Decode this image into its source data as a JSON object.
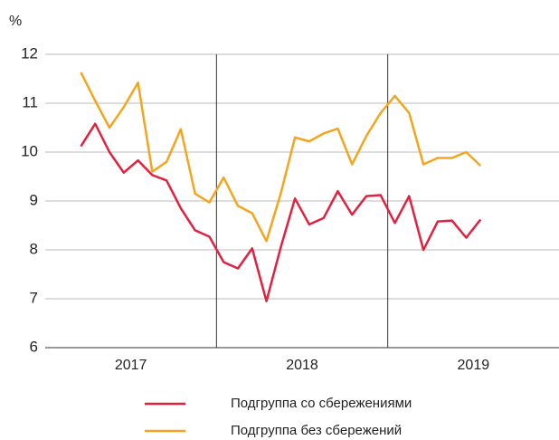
{
  "chart_data": {
    "type": "line",
    "y_label": "%",
    "x": [
      3,
      4,
      5,
      6,
      7,
      8,
      9,
      10,
      11,
      12,
      13,
      14,
      15,
      16,
      17,
      18,
      19,
      20,
      21,
      22,
      23,
      24,
      25,
      26,
      27,
      28,
      29,
      30,
      31
    ],
    "xlim": [
      0.5,
      36.5
    ],
    "xticks": [
      {
        "value": 6.5,
        "label": "2017"
      },
      {
        "value": 18.5,
        "label": "2018"
      },
      {
        "value": 30.5,
        "label": "2019"
      }
    ],
    "xgrid": [
      12.5,
      24.5
    ],
    "ylim": [
      6,
      12
    ],
    "yticks": [
      6,
      7,
      8,
      9,
      10,
      11,
      12
    ],
    "grid": true,
    "series": [
      {
        "name": "Подгруппа со сбережениями",
        "color": "#e2203f",
        "values": [
          10.12,
          10.58,
          10.0,
          9.58,
          9.83,
          9.53,
          9.42,
          8.85,
          8.4,
          8.27,
          7.75,
          7.62,
          8.03,
          6.95,
          8.05,
          9.05,
          8.52,
          8.65,
          9.2,
          8.72,
          9.1,
          9.12,
          8.55,
          9.1,
          8.0,
          8.58,
          8.6,
          8.25,
          8.62
        ]
      },
      {
        "name": "Подгруппа без сбережений",
        "color": "#f4a51f",
        "values": [
          11.63,
          11.05,
          10.5,
          10.92,
          11.42,
          9.6,
          9.8,
          10.47,
          9.15,
          8.97,
          9.48,
          8.9,
          8.75,
          8.18,
          9.15,
          10.3,
          10.22,
          10.38,
          10.48,
          9.75,
          10.33,
          10.8,
          11.15,
          10.8,
          9.75,
          9.88,
          9.88,
          10.0,
          9.72
        ]
      }
    ]
  }
}
